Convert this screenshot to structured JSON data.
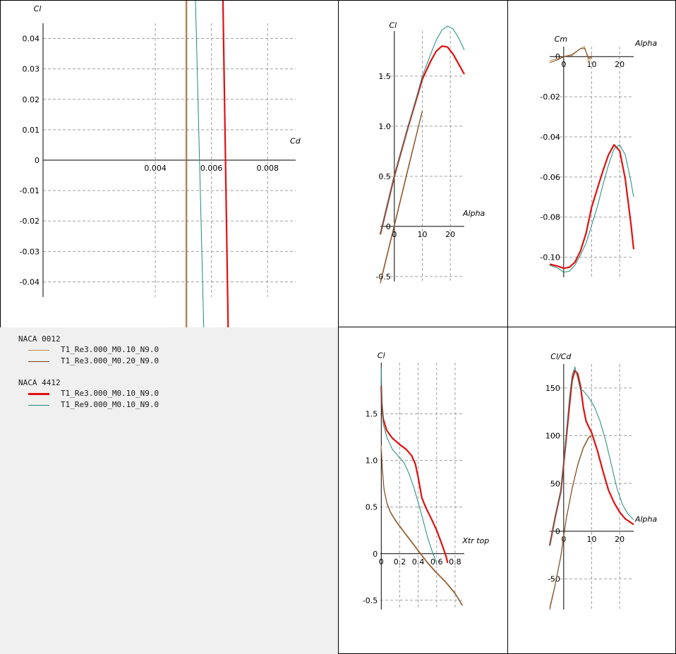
{
  "colors": {
    "naca0012_re3_m010": "#b88c4a",
    "naca0012_re3_m020": "#7a3f1c",
    "naca4412_re3_m010": "#e01010",
    "naca4412_re9_m010": "#1c8c78",
    "grid": "#a0a0a0",
    "axis": "#000000",
    "legend_background": "#f0f0f0"
  },
  "legend": {
    "groups": [
      {
        "title": "NACA 0012",
        "entries": [
          {
            "label": "T1_Re3.000_M0.10_N9.0",
            "color": "#b88c4a",
            "thick": false
          },
          {
            "label": "T1_Re3.000_M0.20_N9.0",
            "color": "#7a3f1c",
            "thick": false
          }
        ]
      },
      {
        "title": "NACA 4412",
        "entries": [
          {
            "label": "T1_Re3.000_M0.10_N9.0",
            "color": "#e01010",
            "thick": true
          },
          {
            "label": "T1_Re9.000_M0.10_N9.0",
            "color": "#1c8c78",
            "thick": false
          }
        ]
      }
    ]
  },
  "chart_data": [
    {
      "id": "polar",
      "type": "line",
      "title": "",
      "xlabel": "Cd",
      "ylabel": "Cl",
      "xlim": [
        0.0,
        0.009
      ],
      "ylim": [
        -0.045,
        0.045
      ],
      "xticks": [
        0.004,
        0.006,
        0.008
      ],
      "xtick_labels": [
        "0.004",
        "0.006",
        "0.008"
      ],
      "yticks": [
        0.04,
        0.03,
        0.02,
        0.01,
        0,
        -0.01,
        -0.02,
        -0.03,
        -0.04
      ],
      "ytick_labels": [
        "0.04",
        "0.03",
        "0.02",
        "0.01",
        "0",
        "-0.01",
        "-0.02",
        "-0.03",
        "-0.04"
      ],
      "grid": true,
      "series": [
        {
          "name": "T1_Re3.000_M0.10_N9.0",
          "points": [
            [
              0.00508,
              0.075
            ],
            [
              0.00508,
              -0.075
            ]
          ]
        },
        {
          "name": "T1_Re3.000_M0.20_N9.0",
          "points": [
            [
              0.00512,
              0.075
            ],
            [
              0.00512,
              -0.075
            ]
          ]
        },
        {
          "name": "T1_Re3.000_M0.10_N9.0",
          "points": [
            [
              0.00637,
              0.075
            ],
            [
              0.00663,
              -0.075
            ]
          ]
        },
        {
          "name": "T1_Re9.000_M0.10_N9.0",
          "points": [
            [
              0.00537,
              0.075
            ],
            [
              0.00578,
              -0.075
            ]
          ]
        }
      ]
    },
    {
      "id": "cl-alpha",
      "type": "line",
      "title": "",
      "xlabel": "Alpha",
      "ylabel": "Cl",
      "xlim": [
        -5,
        25
      ],
      "ylim": [
        -0.55,
        1.95
      ],
      "xticks": [
        0,
        10,
        20
      ],
      "xtick_labels": [
        "0",
        "10",
        "20"
      ],
      "yticks": [
        1.5,
        1.0,
        0.5,
        0,
        -0.5
      ],
      "ytick_labels": [
        "1.5",
        "1.0",
        "0.5",
        "0",
        "-0.5"
      ],
      "grid": true,
      "series": [
        {
          "name": "T1_Re3.000_M0.10_N9.0",
          "points": [
            [
              -5,
              -0.55
            ],
            [
              0,
              0.02
            ],
            [
              5,
              0.6
            ],
            [
              10,
              1.16
            ]
          ]
        },
        {
          "name": "T1_Re3.000_M0.20_N9.0",
          "points": [
            [
              -5,
              -0.57
            ],
            [
              0,
              0.0
            ],
            [
              5,
              0.58
            ],
            [
              10,
              1.15
            ]
          ]
        },
        {
          "name": "T1_Re3.000_M0.10_N9.0",
          "points": [
            [
              -5,
              -0.08
            ],
            [
              0,
              0.5
            ],
            [
              5,
              1.0
            ],
            [
              10,
              1.47
            ],
            [
              13,
              1.65
            ],
            [
              15,
              1.75
            ],
            [
              17,
              1.8
            ],
            [
              19,
              1.79
            ],
            [
              21,
              1.72
            ],
            [
              23,
              1.62
            ],
            [
              25,
              1.52
            ]
          ]
        },
        {
          "name": "T1_Re9.000_M0.10_N9.0",
          "points": [
            [
              -5,
              -0.08
            ],
            [
              0,
              0.5
            ],
            [
              5,
              1.0
            ],
            [
              10,
              1.5
            ],
            [
              13,
              1.72
            ],
            [
              15,
              1.86
            ],
            [
              17,
              1.96
            ],
            [
              19,
              2.0
            ],
            [
              21,
              1.97
            ],
            [
              23,
              1.88
            ],
            [
              25,
              1.76
            ]
          ]
        }
      ]
    },
    {
      "id": "cm-alpha",
      "type": "line",
      "title": "",
      "xlabel": "Alpha",
      "ylabel": "Cm",
      "xlim": [
        -5,
        25
      ],
      "ylim": [
        -0.11,
        0.005
      ],
      "xticks": [
        0,
        10,
        20
      ],
      "xtick_labels": [
        "0",
        "10",
        "20"
      ],
      "yticks": [
        0,
        -0.02,
        -0.04,
        -0.06,
        -0.08,
        -0.1
      ],
      "ytick_labels": [
        "0",
        "-0.02",
        "-0.04",
        "-0.06",
        "-0.08",
        "-0.10"
      ],
      "grid": true,
      "series": [
        {
          "name": "T1_Re3.000_M0.10_N9.0",
          "points": [
            [
              -5,
              -0.002
            ],
            [
              -2,
              -0.001
            ],
            [
              0,
              0.0
            ],
            [
              3,
              0.0005
            ],
            [
              6,
              0.004
            ],
            [
              7.5,
              0.005
            ],
            [
              9,
              -0.003
            ],
            [
              9.6,
              -0.001
            ],
            [
              10,
              0.001
            ]
          ]
        },
        {
          "name": "T1_Re3.000_M0.20_N9.0",
          "points": [
            [
              -5,
              -0.003
            ],
            [
              -2,
              -0.0015
            ],
            [
              0,
              0.0
            ],
            [
              3,
              0.001
            ],
            [
              6,
              0.004
            ],
            [
              7.5,
              0.004
            ],
            [
              9,
              -0.001
            ],
            [
              10,
              0.0
            ]
          ]
        },
        {
          "name": "T1_Re3.000_M0.10_N9.0",
          "points": [
            [
              -5,
              -0.1035
            ],
            [
              -2,
              -0.1045
            ],
            [
              0,
              -0.1055
            ],
            [
              2,
              -0.105
            ],
            [
              4,
              -0.1025
            ],
            [
              6,
              -0.097
            ],
            [
              8,
              -0.088
            ],
            [
              10,
              -0.075
            ],
            [
              12,
              -0.066
            ],
            [
              14,
              -0.057
            ],
            [
              16,
              -0.049
            ],
            [
              18,
              -0.044
            ],
            [
              20,
              -0.047
            ],
            [
              22,
              -0.061
            ],
            [
              24,
              -0.083
            ],
            [
              25,
              -0.096
            ]
          ]
        },
        {
          "name": "T1_Re9.000_M0.10_N9.0",
          "points": [
            [
              -5,
              -0.104
            ],
            [
              -2,
              -0.1055
            ],
            [
              0,
              -0.1075
            ],
            [
              2,
              -0.107
            ],
            [
              4,
              -0.104
            ],
            [
              6,
              -0.099
            ],
            [
              8,
              -0.093
            ],
            [
              10,
              -0.084
            ],
            [
              12,
              -0.075
            ],
            [
              14,
              -0.064
            ],
            [
              16,
              -0.054
            ],
            [
              18,
              -0.046
            ],
            [
              20,
              -0.044
            ],
            [
              22,
              -0.049
            ],
            [
              24,
              -0.062
            ],
            [
              25,
              -0.07
            ]
          ]
        }
      ]
    },
    {
      "id": "cl-xtr",
      "type": "line",
      "title": "",
      "xlabel": "Xtr top",
      "ylabel": "Cl",
      "xlim": [
        -0.01,
        0.9
      ],
      "ylim": [
        -0.6,
        2.05
      ],
      "xticks": [
        0,
        0.2,
        0.4,
        0.6,
        0.8
      ],
      "xtick_labels": [
        "0",
        "0.2",
        "0.4",
        "0.6",
        "0.8"
      ],
      "yticks": [
        1.5,
        1.0,
        0.5,
        0,
        -0.5
      ],
      "ytick_labels": [
        "1.5",
        "1.0",
        "0.5",
        "0",
        "-0.5"
      ],
      "grid": true,
      "series": [
        {
          "name": "T1_Re3.000_M0.10_N9.0",
          "points": [
            [
              0.0,
              1.16
            ],
            [
              0.01,
              0.95
            ],
            [
              0.03,
              0.7
            ],
            [
              0.06,
              0.55
            ],
            [
              0.1,
              0.45
            ],
            [
              0.15,
              0.37
            ],
            [
              0.2,
              0.3
            ],
            [
              0.3,
              0.17
            ],
            [
              0.4,
              0.04
            ],
            [
              0.5,
              -0.09
            ],
            [
              0.6,
              -0.2
            ],
            [
              0.7,
              -0.3
            ],
            [
              0.8,
              -0.42
            ],
            [
              0.88,
              -0.55
            ]
          ]
        },
        {
          "name": "T1_Re3.000_M0.20_N9.0",
          "points": [
            [
              0.0,
              1.12
            ],
            [
              0.01,
              0.93
            ],
            [
              0.03,
              0.69
            ],
            [
              0.06,
              0.54
            ],
            [
              0.1,
              0.44
            ],
            [
              0.15,
              0.36
            ],
            [
              0.2,
              0.29
            ],
            [
              0.3,
              0.16
            ],
            [
              0.4,
              0.03
            ],
            [
              0.5,
              -0.1
            ],
            [
              0.6,
              -0.21
            ],
            [
              0.7,
              -0.31
            ],
            [
              0.8,
              -0.43
            ],
            [
              0.88,
              -0.56
            ]
          ]
        },
        {
          "name": "T1_Re3.000_M0.10_N9.0",
          "points": [
            [
              0.0,
              1.8
            ],
            [
              0.005,
              1.62
            ],
            [
              0.02,
              1.45
            ],
            [
              0.06,
              1.32
            ],
            [
              0.12,
              1.24
            ],
            [
              0.2,
              1.17
            ],
            [
              0.27,
              1.12
            ],
            [
              0.33,
              1.05
            ],
            [
              0.37,
              0.96
            ],
            [
              0.4,
              0.82
            ],
            [
              0.44,
              0.6
            ],
            [
              0.48,
              0.5
            ],
            [
              0.55,
              0.36
            ],
            [
              0.6,
              0.25
            ],
            [
              0.65,
              0.12
            ],
            [
              0.7,
              -0.02
            ],
            [
              0.72,
              -0.1
            ]
          ]
        },
        {
          "name": "T1_Re9.000_M0.10_N9.0",
          "points": [
            [
              0.0,
              2.0
            ],
            [
              0.005,
              1.7
            ],
            [
              0.02,
              1.4
            ],
            [
              0.06,
              1.25
            ],
            [
              0.12,
              1.12
            ],
            [
              0.2,
              1.03
            ],
            [
              0.25,
              0.97
            ],
            [
              0.3,
              0.86
            ],
            [
              0.35,
              0.72
            ],
            [
              0.4,
              0.55
            ],
            [
              0.45,
              0.37
            ],
            [
              0.5,
              0.18
            ],
            [
              0.55,
              0.03
            ],
            [
              0.6,
              -0.1
            ]
          ]
        }
      ]
    },
    {
      "id": "clcd-alpha",
      "type": "line",
      "title": "",
      "xlabel": "Alpha",
      "ylabel": "Cl/Cd",
      "xlim": [
        -5,
        25
      ],
      "ylim": [
        -82,
        175
      ],
      "xticks": [
        0,
        10,
        20
      ],
      "xtick_labels": [
        "0",
        "10",
        "20"
      ],
      "yticks": [
        150,
        100,
        50,
        0,
        -50
      ],
      "ytick_labels": [
        "150",
        "100",
        "50",
        "0",
        "-50"
      ],
      "grid": true,
      "series": [
        {
          "name": "T1_Re3.000_M0.10_N9.0",
          "points": [
            [
              -5,
              -80
            ],
            [
              -3,
              -55
            ],
            [
              -1,
              -25
            ],
            [
              0,
              -5
            ],
            [
              1,
              15
            ],
            [
              3,
              45
            ],
            [
              5,
              70
            ],
            [
              7,
              88
            ],
            [
              9,
              99
            ],
            [
              10,
              100
            ]
          ]
        },
        {
          "name": "T1_Re3.000_M0.20_N9.0",
          "points": [
            [
              -5,
              -82
            ],
            [
              -3,
              -56
            ],
            [
              -1,
              -26
            ],
            [
              0,
              -6
            ],
            [
              1,
              14
            ],
            [
              3,
              44
            ],
            [
              5,
              69
            ],
            [
              7,
              87
            ],
            [
              9,
              98
            ],
            [
              10,
              99
            ]
          ]
        },
        {
          "name": "T1_Re3.000_M0.10_N9.0",
          "points": [
            [
              -5,
              -15
            ],
            [
              -3,
              15
            ],
            [
              -1,
              42
            ],
            [
              0,
              70
            ],
            [
              1,
              100
            ],
            [
              2,
              130
            ],
            [
              3,
              158
            ],
            [
              4,
              168
            ],
            [
              5,
              165
            ],
            [
              6,
              152
            ],
            [
              7,
              130
            ],
            [
              8,
              115
            ],
            [
              10,
              103
            ],
            [
              12,
              85
            ],
            [
              14,
              63
            ],
            [
              16,
              43
            ],
            [
              18,
              30
            ],
            [
              20,
              20
            ],
            [
              22,
              13
            ],
            [
              25,
              7
            ]
          ]
        },
        {
          "name": "T1_Re9.000_M0.10_N9.0",
          "points": [
            [
              -5,
              -15
            ],
            [
              -3,
              15
            ],
            [
              -1,
              42
            ],
            [
              0,
              70
            ],
            [
              1,
              105
            ],
            [
              2,
              138
            ],
            [
              3,
              163
            ],
            [
              4,
              172
            ],
            [
              5,
              160
            ],
            [
              6,
              148
            ],
            [
              7,
              147
            ],
            [
              9,
              140
            ],
            [
              11,
              130
            ],
            [
              13,
              115
            ],
            [
              15,
              95
            ],
            [
              17,
              70
            ],
            [
              19,
              45
            ],
            [
              21,
              28
            ],
            [
              23,
              18
            ],
            [
              25,
              12
            ]
          ]
        }
      ]
    }
  ]
}
